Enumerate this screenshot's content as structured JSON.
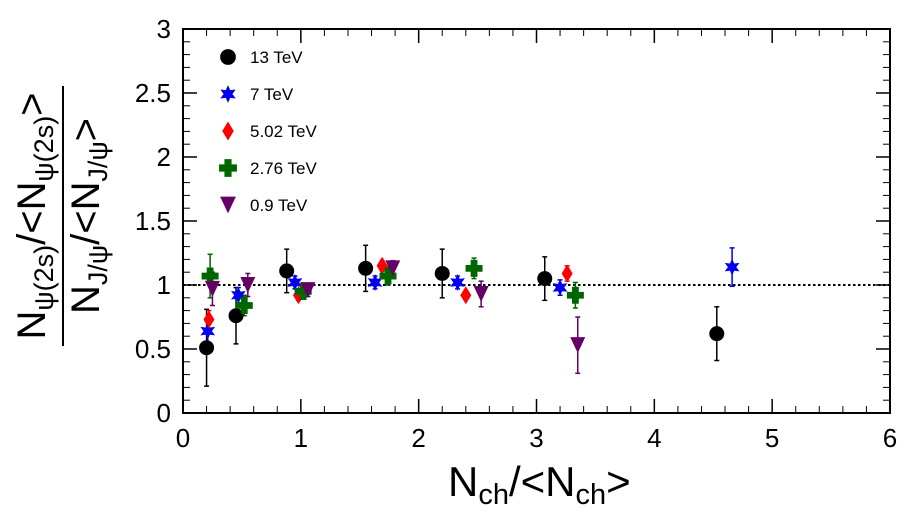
{
  "chart_data": {
    "type": "scatter",
    "title": "",
    "xlim": [
      0,
      6
    ],
    "ylim": [
      0,
      3
    ],
    "x_ticks": [
      "0",
      "1",
      "2",
      "3",
      "4",
      "5",
      "6"
    ],
    "y_ticks": [
      "0",
      "0.5",
      "1",
      "1.5",
      "2",
      "2.5",
      "3"
    ],
    "xlabel": {
      "main": "N",
      "sub": "ch",
      "mid": "/<N",
      "sub2": "ch",
      "end": ">"
    },
    "ylabel": {
      "numerator": {
        "main": "N",
        "sub": "ψ(2s)",
        "mid": "/<N",
        "sub2": "ψ(2s)",
        "end": ">"
      },
      "denominator": {
        "main": "N",
        "sub": "J/ψ",
        "mid": "/<N",
        "sub2": "J/ψ",
        "end": ">"
      }
    },
    "reference_line": {
      "y": 1,
      "style": "dotted"
    },
    "legend_position": "top-left",
    "series": [
      {
        "name": "13 TeV",
        "marker": "circle",
        "color": "#000000",
        "points": [
          {
            "x": 0.2,
            "y": 0.51,
            "err": 0.3
          },
          {
            "x": 0.45,
            "y": 0.76,
            "err": 0.22
          },
          {
            "x": 0.88,
            "y": 1.11,
            "err": 0.17
          },
          {
            "x": 1.55,
            "y": 1.13,
            "err": 0.18
          },
          {
            "x": 2.2,
            "y": 1.09,
            "err": 0.19
          },
          {
            "x": 3.07,
            "y": 1.05,
            "err": 0.17
          },
          {
            "x": 4.53,
            "y": 0.62,
            "err": 0.21
          }
        ]
      },
      {
        "name": "7 TeV",
        "marker": "star",
        "color": "#0000ee",
        "points": [
          {
            "x": 0.21,
            "y": 0.64,
            "err": 0.09
          },
          {
            "x": 0.47,
            "y": 0.92,
            "err": 0.06
          },
          {
            "x": 0.95,
            "y": 1.02,
            "err": 0.05
          },
          {
            "x": 1.63,
            "y": 1.02,
            "err": 0.05
          },
          {
            "x": 2.33,
            "y": 1.02,
            "err": 0.05
          },
          {
            "x": 3.2,
            "y": 0.98,
            "err": 0.06
          },
          {
            "x": 4.66,
            "y": 1.14,
            "err": 0.15
          }
        ]
      },
      {
        "name": "5.02 TeV",
        "marker": "diamond",
        "color": "#ff0000",
        "points": [
          {
            "x": 0.22,
            "y": 0.73,
            "err": 0.07
          },
          {
            "x": 0.98,
            "y": 0.92,
            "err": 0.04
          },
          {
            "x": 1.69,
            "y": 1.15,
            "err": 0.04
          },
          {
            "x": 2.4,
            "y": 0.92,
            "err": 0.03
          },
          {
            "x": 3.26,
            "y": 1.09,
            "err": 0.06
          }
        ]
      },
      {
        "name": "2.76 TeV",
        "marker": "cross",
        "color": "#006600",
        "points": [
          {
            "x": 0.23,
            "y": 1.07,
            "err": 0.17
          },
          {
            "x": 0.52,
            "y": 0.84,
            "err": 0.08
          },
          {
            "x": 1.02,
            "y": 0.95,
            "err": 0.06
          },
          {
            "x": 1.74,
            "y": 1.07,
            "err": 0.07
          },
          {
            "x": 2.47,
            "y": 1.13,
            "err": 0.08
          },
          {
            "x": 3.33,
            "y": 0.92,
            "err": 0.1
          }
        ]
      },
      {
        "name": "0.9 TeV",
        "marker": "triangle-down",
        "color": "#660066",
        "points": [
          {
            "x": 0.25,
            "y": 0.97,
            "err": 0.13
          },
          {
            "x": 0.55,
            "y": 1.0,
            "err": 0.09
          },
          {
            "x": 1.06,
            "y": 0.96,
            "err": 0.05
          },
          {
            "x": 1.78,
            "y": 1.13,
            "err": 0.06
          },
          {
            "x": 2.53,
            "y": 0.93,
            "err": 0.1
          },
          {
            "x": 3.35,
            "y": 0.53,
            "err": 0.22
          }
        ]
      }
    ]
  }
}
